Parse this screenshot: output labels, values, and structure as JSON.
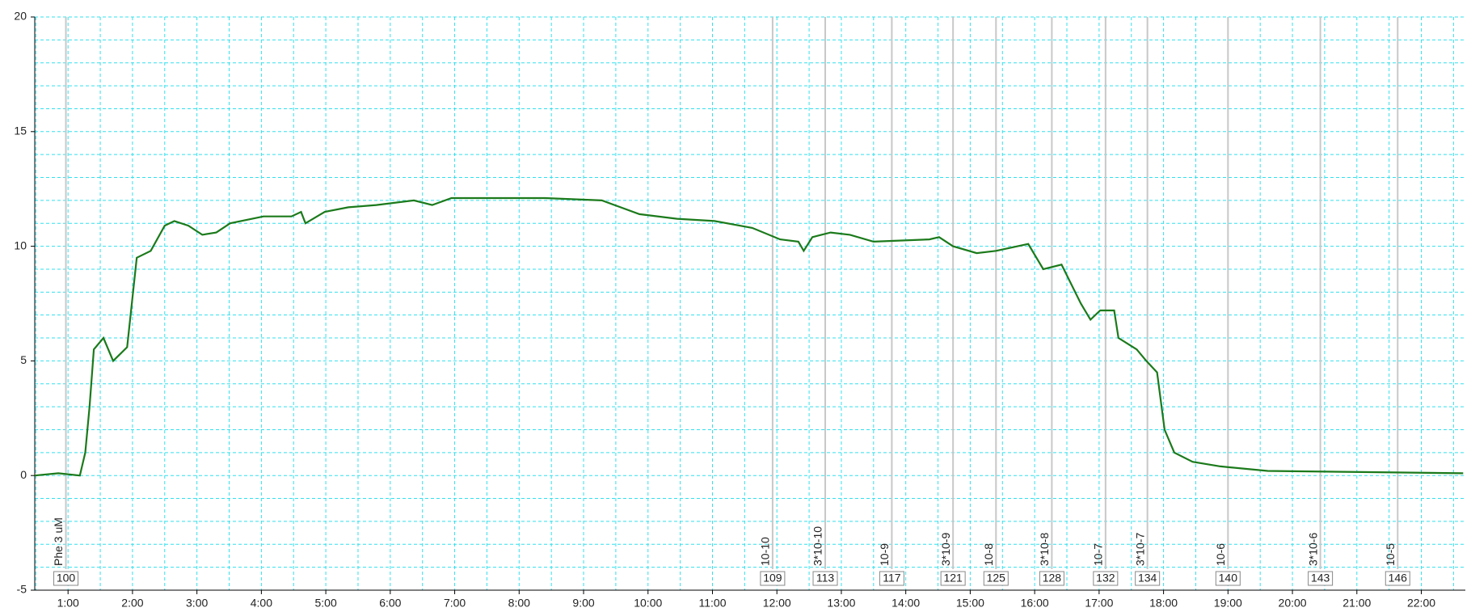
{
  "chart_data": {
    "type": "line",
    "xlim": [
      29,
      1361
    ],
    "ylim": [
      -5,
      20
    ],
    "yticks": [
      -5,
      0,
      5,
      10,
      15,
      20
    ],
    "xticks": [
      {
        "value": 60,
        "label": "1:00"
      },
      {
        "value": 120,
        "label": "2:00"
      },
      {
        "value": 180,
        "label": "3:00"
      },
      {
        "value": 240,
        "label": "4:00"
      },
      {
        "value": 300,
        "label": "5:00"
      },
      {
        "value": 360,
        "label": "6:00"
      },
      {
        "value": 420,
        "label": "7:00"
      },
      {
        "value": 480,
        "label": "8:00"
      },
      {
        "value": 540,
        "label": "9:00"
      },
      {
        "value": 600,
        "label": "10:00"
      },
      {
        "value": 660,
        "label": "11:00"
      },
      {
        "value": 720,
        "label": "12:00"
      },
      {
        "value": 780,
        "label": "13:00"
      },
      {
        "value": 840,
        "label": "14:00"
      },
      {
        "value": 900,
        "label": "15:00"
      },
      {
        "value": 960,
        "label": "16:00"
      },
      {
        "value": 1020,
        "label": "17:00"
      },
      {
        "value": 1080,
        "label": "18:00"
      },
      {
        "value": 1140,
        "label": "19:00"
      },
      {
        "value": 1200,
        "label": "20:00"
      },
      {
        "value": 1260,
        "label": "21:00"
      },
      {
        "value": 1320,
        "label": "22:00"
      }
    ],
    "grid": true,
    "x": [
      29,
      51,
      71,
      76,
      80,
      84,
      93,
      102,
      115,
      124,
      137,
      150,
      159,
      172,
      185,
      198,
      211,
      242,
      268,
      277,
      281,
      299,
      321,
      347,
      382,
      399,
      417,
      452,
      504,
      557,
      592,
      627,
      662,
      697,
      723,
      740,
      745,
      753,
      770,
      788,
      810,
      862,
      871,
      884,
      906,
      924,
      954,
      968,
      985,
      1003,
      1012,
      1021,
      1034,
      1038,
      1055,
      1064,
      1074,
      1081,
      1090,
      1107,
      1133,
      1177,
      1265,
      1359
    ],
    "series": [
      {
        "color": "#1b7a1b",
        "values": [
          0,
          0.1,
          0,
          1,
          3,
          5.5,
          6,
          5,
          5.6,
          9.5,
          9.8,
          10.9,
          11.1,
          10.9,
          10.5,
          10.6,
          11,
          11.3,
          11.3,
          11.5,
          11,
          11.5,
          11.7,
          11.8,
          12,
          11.8,
          12.1,
          12.1,
          12.1,
          12.0,
          11.4,
          11.2,
          11.1,
          10.8,
          10.3,
          10.2,
          9.8,
          10.4,
          10.6,
          10.5,
          10.2,
          10.3,
          10.4,
          10.0,
          9.7,
          9.8,
          10.1,
          9.0,
          9.2,
          7.5,
          6.8,
          7.2,
          7.2,
          6,
          5.5,
          5,
          4.5,
          2,
          1,
          0.6,
          0.4,
          0.2,
          0.15,
          0.1
        ]
      }
    ],
    "events": [
      {
        "x": 58,
        "label": "Phe 3 uM",
        "id": 100
      },
      {
        "x": 716,
        "label": "10-10",
        "id": 109
      },
      {
        "x": 765,
        "label": "3*10-10",
        "id": 113
      },
      {
        "x": 827,
        "label": "10-9",
        "id": 117
      },
      {
        "x": 884,
        "label": "3*10-9",
        "id": 121
      },
      {
        "x": 924,
        "label": "10-8",
        "id": 125
      },
      {
        "x": 976,
        "label": "3*10-8",
        "id": 128
      },
      {
        "x": 1026,
        "label": "10-7",
        "id": 132
      },
      {
        "x": 1065,
        "label": "3*10-7",
        "id": 134
      },
      {
        "x": 1140,
        "label": "10-6",
        "id": 140
      },
      {
        "x": 1226,
        "label": "3*10-6",
        "id": 143
      },
      {
        "x": 1298,
        "label": "10-5",
        "id": 146
      }
    ]
  }
}
